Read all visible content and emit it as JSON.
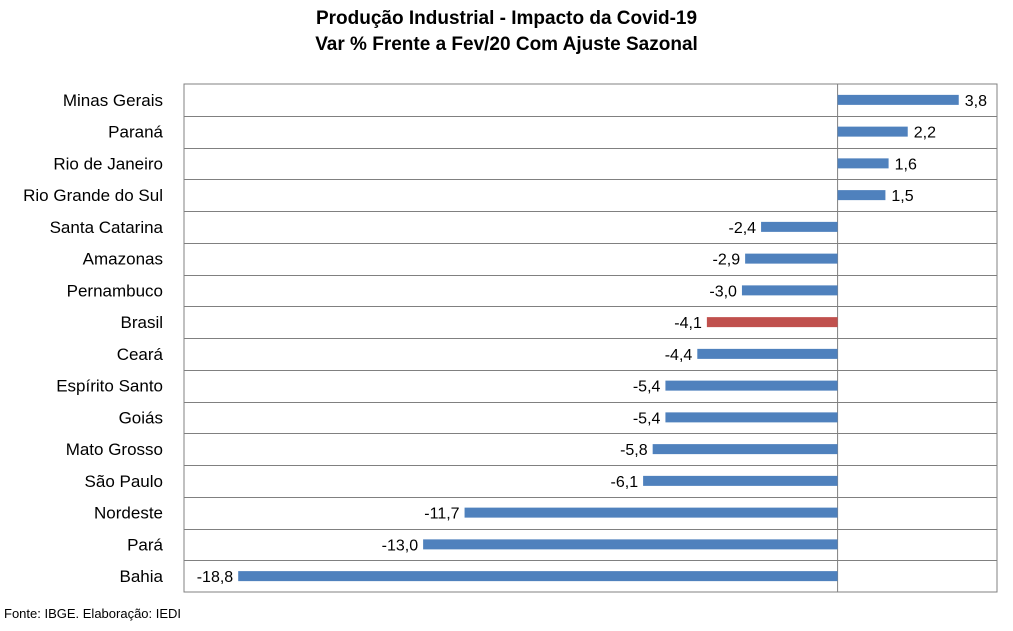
{
  "chart_data": {
    "type": "bar",
    "orientation": "horizontal",
    "title": "Produção Industrial - Impacto da Covid-19",
    "subtitle": "Var % Frente a Fev/20 Com Ajuste Sazonal",
    "categories": [
      "Minas Gerais",
      "Paraná",
      "Rio de Janeiro",
      "Rio Grande do Sul",
      "Santa Catarina",
      "Amazonas",
      "Pernambuco",
      "Brasil",
      "Ceará",
      "Espírito Santo",
      "Goiás",
      "Mato Grosso",
      "São Paulo",
      "Nordeste",
      "Pará",
      "Bahia"
    ],
    "values": [
      3.8,
      2.2,
      1.6,
      1.5,
      -2.4,
      -2.9,
      -3.0,
      -4.1,
      -4.4,
      -5.4,
      -5.4,
      -5.8,
      -6.1,
      -11.7,
      -13.0,
      -18.8
    ],
    "data_labels": [
      "3,8",
      "2,2",
      "1,6",
      "1,5",
      "-2,4",
      "-2,9",
      "-3,0",
      "-4,1",
      "-4,4",
      "-5,4",
      "-5,4",
      "-5,8",
      "-6,1",
      "-11,7",
      "-13,0",
      "-18,8"
    ],
    "highlight_category": "Brasil",
    "xlim": [
      -20.5,
      5.0
    ],
    "grid": "horizontal lines between categories",
    "legend": "none",
    "colors": {
      "bar": "#4F81BD",
      "highlight": "#C0504D",
      "grid": "#808080"
    },
    "source": "Fonte: IBGE. Elaboração: IEDI"
  }
}
